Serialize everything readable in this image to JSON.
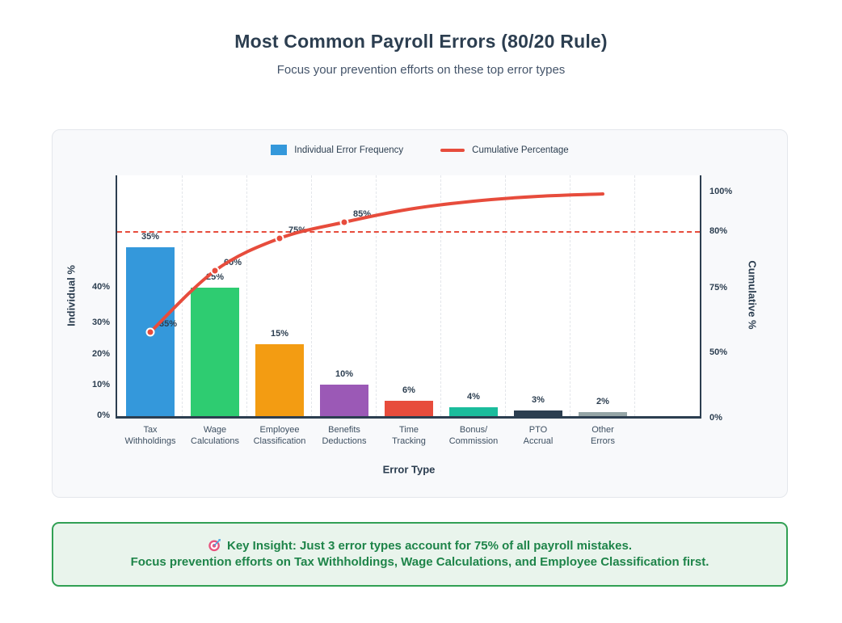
{
  "page": {
    "title": "Most Common Payroll Errors (80/20 Rule)",
    "subtitle": "Focus your prevention efforts on these top error types"
  },
  "legend": {
    "bar_label": "Individual Error Frequency",
    "line_label": "Cumulative Percentage"
  },
  "chart_data": {
    "type": "bar+line (pareto)",
    "title": "Most Common Payroll Errors (80/20 Rule)",
    "categories": [
      "Tax\nWithholdings",
      "Wage\nCalculations",
      "Employee\nClassification",
      "Benefits\nDeductions",
      "Time\nTracking",
      "Bonus/\nCommission",
      "PTO\nAccrual",
      "Other\nErrors"
    ],
    "series": [
      {
        "name": "Individual Error Frequency",
        "type": "bar",
        "values": [
          35,
          25,
          15,
          10,
          6,
          4,
          3,
          2
        ],
        "unit": "%",
        "data_labels": [
          "35%",
          "25%",
          "15%",
          "10%",
          "6%",
          "4%",
          "3%",
          "2%"
        ],
        "colors": [
          "#3498db",
          "#2ecc71",
          "#f39c12",
          "#9b59b6",
          "#e74c3c",
          "#1abc9c",
          "#2c3e50",
          "#95a5a6"
        ]
      },
      {
        "name": "Cumulative Percentage",
        "type": "line",
        "values": [
          35,
          60,
          75,
          85,
          91,
          95,
          98,
          100
        ],
        "unit": "%",
        "point_labels": [
          "35%",
          "60%",
          "75%",
          "85%",
          "",
          "",
          "",
          ""
        ],
        "color": "#e74c3c"
      }
    ],
    "reference_line": {
      "value": 80,
      "axis": "right",
      "style": "dashed",
      "color": "#e74c3c"
    },
    "axes": {
      "x_title": "Error Type",
      "y_left_title": "Individual %",
      "y_left_ticks": [
        "0%",
        "10%",
        "20%",
        "30%",
        "40%"
      ],
      "y_right_title": "Cumulative %",
      "y_right_ticks": [
        "0%",
        "50%",
        "75%",
        "80%",
        "100%"
      ]
    },
    "grid": "vertical dashed between categories",
    "legend_position": "top center"
  },
  "insight": {
    "icon_name": "target-icon",
    "line1": "Key Insight: Just 3 error types account for 75% of all payroll mistakes.",
    "line2": "Focus prevention efforts on Tax Withholdings, Wage Calculations, and Employee Classification first."
  }
}
